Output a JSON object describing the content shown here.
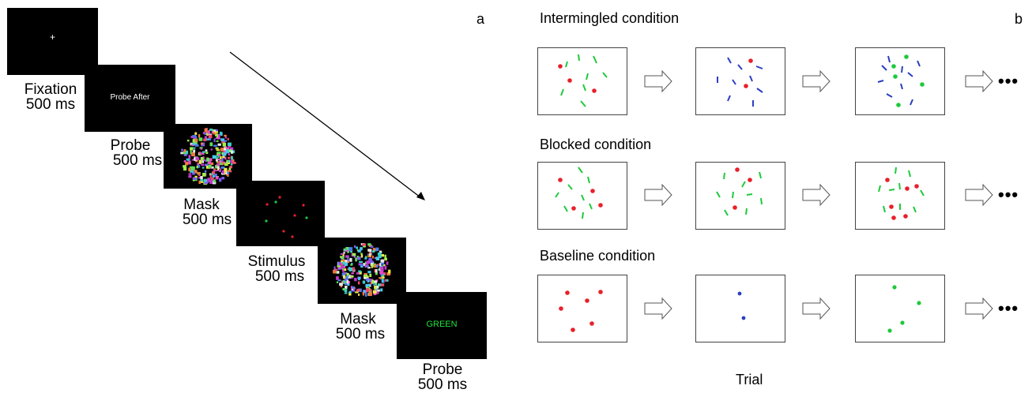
{
  "panel_a": {
    "letter": "a",
    "fixation_symbol": "+",
    "probe_text": "Probe After",
    "answer_text": "GREEN",
    "labels": [
      {
        "name": "Fixation",
        "duration": "500 ms"
      },
      {
        "name": "Probe",
        "duration": "500 ms"
      },
      {
        "name": "Mask",
        "duration": "500 ms"
      },
      {
        "name": "Stimulus",
        "duration": "500 ms"
      },
      {
        "name": "Mask",
        "duration": "500 ms"
      },
      {
        "name": "Probe",
        "duration": "500 ms"
      }
    ]
  },
  "panel_b": {
    "letter": "b",
    "conditions": [
      {
        "title": "Intermingled condition"
      },
      {
        "title": "Blocked condition"
      },
      {
        "title": "Baseline condition"
      }
    ],
    "continuation": "•••",
    "x_label": "Trial"
  },
  "colors": {
    "red": "#e8202a",
    "green": "#1ec93c",
    "blue": "#2a3ec0",
    "answer_green": "#22e03a"
  }
}
